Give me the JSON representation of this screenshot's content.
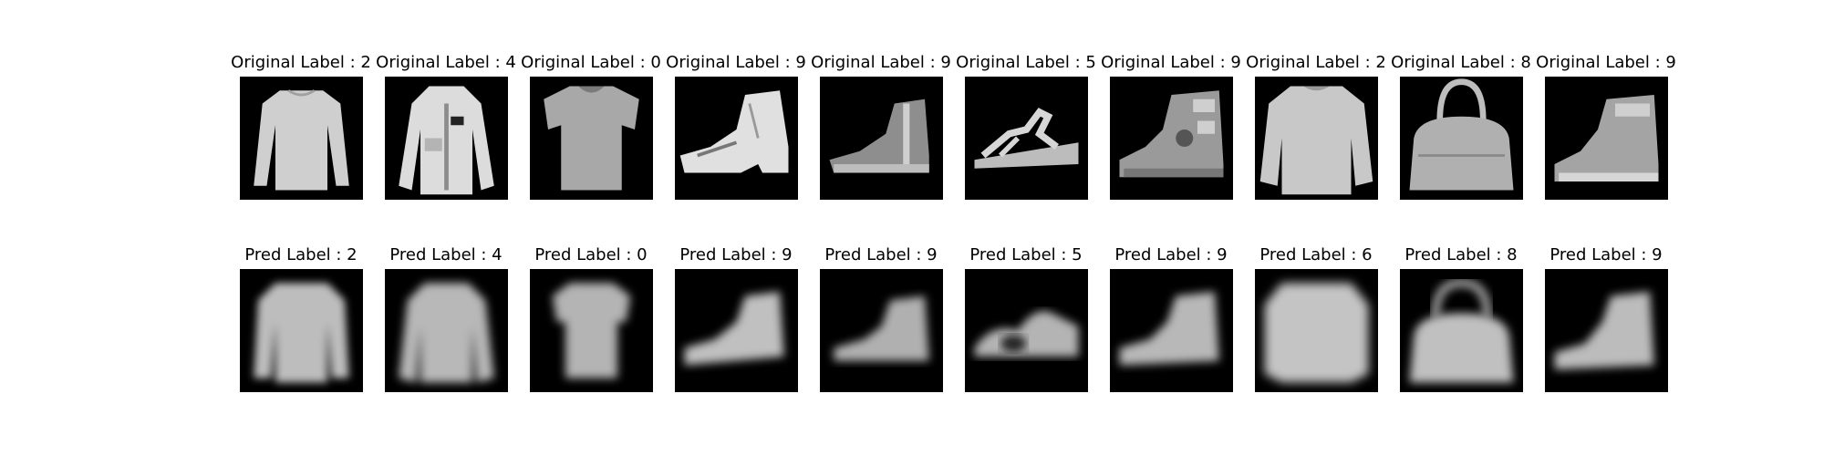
{
  "figure": {
    "rows": [
      {
        "kind": "original",
        "items": [
          {
            "title": "Original Label : 2",
            "icon": "long-sleeve-top-icon"
          },
          {
            "title": "Original Label : 4",
            "icon": "coat-icon"
          },
          {
            "title": "Original Label : 0",
            "icon": "t-shirt-icon"
          },
          {
            "title": "Original Label : 9",
            "icon": "ankle-boot-icon"
          },
          {
            "title": "Original Label : 9",
            "icon": "ankle-boot-icon"
          },
          {
            "title": "Original Label : 5",
            "icon": "sandal-icon"
          },
          {
            "title": "Original Label : 9",
            "icon": "ankle-boot-icon"
          },
          {
            "title": "Original Label : 2",
            "icon": "pullover-icon"
          },
          {
            "title": "Original Label : 8",
            "icon": "bag-icon"
          },
          {
            "title": "Original Label : 9",
            "icon": "ankle-boot-icon"
          }
        ]
      },
      {
        "kind": "pred",
        "items": [
          {
            "title": "Pred Label : 2",
            "icon": "long-sleeve-top-icon"
          },
          {
            "title": "Pred Label : 4",
            "icon": "coat-icon"
          },
          {
            "title": "Pred Label : 0",
            "icon": "t-shirt-icon"
          },
          {
            "title": "Pred Label : 9",
            "icon": "ankle-boot-icon"
          },
          {
            "title": "Pred Label : 9",
            "icon": "ankle-boot-icon"
          },
          {
            "title": "Pred Label : 5",
            "icon": "sandal-icon"
          },
          {
            "title": "Pred Label : 9",
            "icon": "ankle-boot-icon"
          },
          {
            "title": "Pred Label : 6",
            "icon": "pullover-icon"
          },
          {
            "title": "Pred Label : 8",
            "icon": "bag-icon"
          },
          {
            "title": "Pred Label : 9",
            "icon": "ankle-boot-icon"
          }
        ]
      }
    ],
    "colors": {
      "background": "#ffffff",
      "image_background": "#000000",
      "original_garment": "#c8c8c8",
      "pred_garment": "#bdbdbd"
    }
  }
}
